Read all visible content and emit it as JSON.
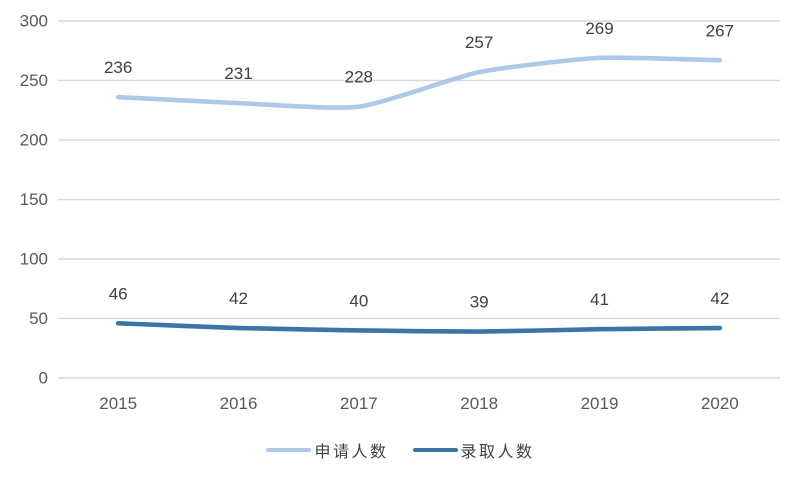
{
  "chart_data": {
    "type": "line",
    "title": "",
    "categories": [
      "2015",
      "2016",
      "2017",
      "2018",
      "2019",
      "2020"
    ],
    "series": [
      {
        "name": "申请人数",
        "color": "#AFC7E8",
        "values": [
          236,
          231,
          228,
          257,
          269,
          267
        ]
      },
      {
        "name": "录取人数",
        "color": "#3D74A6",
        "values": [
          46,
          42,
          40,
          39,
          41,
          42
        ]
      }
    ],
    "xlabel": "",
    "ylabel": "",
    "ylim": [
      0,
      300
    ],
    "ytick_step": 50,
    "ytick_labels": [
      "0",
      "50",
      "100",
      "150",
      "200",
      "250",
      "300"
    ],
    "grid": true,
    "smoothed": true,
    "data_labels_shown": true,
    "legend_position": "bottom"
  },
  "colors": {
    "background": "#FFFFFF",
    "gridline": "#D9D9D9",
    "tick_text": "#595959",
    "data_label_text": "#404040",
    "legend_text": "#404040",
    "series_light": "#AFC7E8",
    "series_dark": "#3D74A6"
  }
}
